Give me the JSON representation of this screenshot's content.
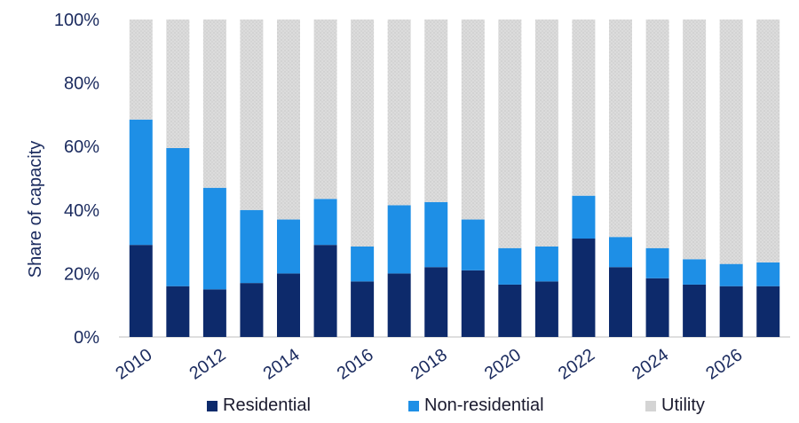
{
  "chart_data": {
    "type": "bar",
    "stacked": true,
    "normalized": true,
    "title": "",
    "xlabel": "",
    "ylabel": "Share of capacity",
    "ylim": [
      0,
      100
    ],
    "yticks": [
      "0%",
      "20%",
      "40%",
      "60%",
      "80%",
      "100%"
    ],
    "categories": [
      "2010",
      "2011",
      "2012",
      "2013",
      "2014",
      "2015",
      "2016",
      "2017",
      "2018",
      "2019",
      "2020",
      "2021",
      "2022",
      "2023",
      "2024",
      "2025",
      "2026",
      "2027"
    ],
    "x_tick_labels": [
      "2010",
      "",
      "2012",
      "",
      "2014",
      "",
      "2016",
      "",
      "2018",
      "",
      "2020",
      "",
      "2022",
      "",
      "2024",
      "",
      "2026",
      ""
    ],
    "grid": false,
    "legend_position": "bottom",
    "series": [
      {
        "name": "Residential",
        "color": "#0d2a6b",
        "values": [
          29,
          16,
          15,
          17,
          20,
          29,
          17.5,
          20,
          22,
          21,
          16.5,
          17.5,
          31,
          22,
          18.5,
          16.5,
          16,
          16
        ]
      },
      {
        "name": "Non-residential",
        "color": "#1e8fe6",
        "values": [
          39.5,
          43.5,
          32,
          23,
          17,
          14.5,
          11,
          21.5,
          20.5,
          16,
          11.5,
          11,
          13.5,
          9.5,
          9.5,
          8,
          7,
          7.5
        ]
      },
      {
        "name": "Utility",
        "color": "#d4d4d4",
        "values": [
          31.5,
          40.5,
          53,
          60,
          63,
          56.5,
          71.5,
          58.5,
          57.5,
          63,
          72,
          71.5,
          55.5,
          68.5,
          72,
          75.5,
          77,
          76.5
        ]
      }
    ]
  }
}
